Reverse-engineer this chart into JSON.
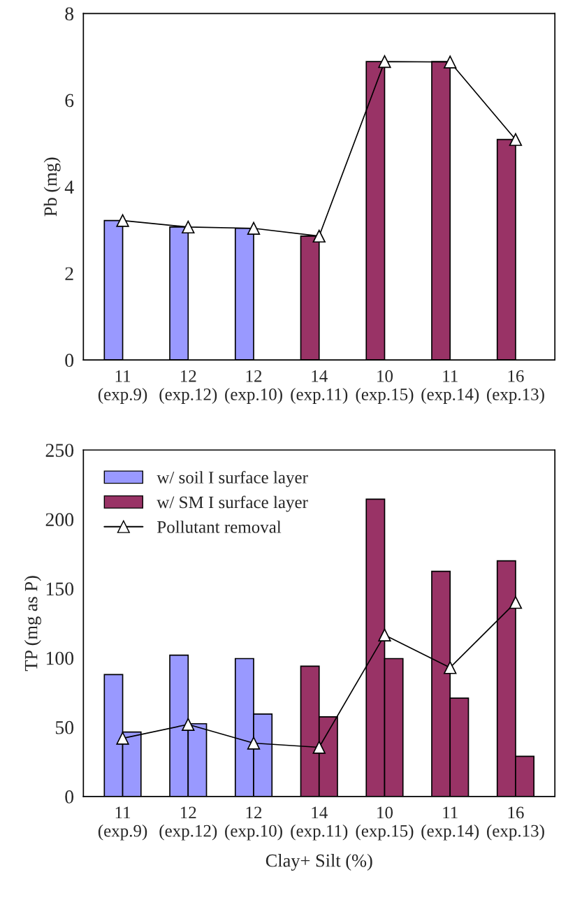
{
  "chart_data": [
    {
      "type": "bar",
      "ylabel": "Pb (mg)",
      "categories": [
        "11\n(exp.9)",
        "12\n(exp.12)",
        "12\n(exp.10)",
        "14\n(exp.11)",
        "10\n(exp.15)",
        "11\n(exp.14)",
        "16\n(exp.13)"
      ],
      "series": [
        {
          "color": "#9999ff",
          "values": [
            3.22,
            3.07,
            3.04,
            null,
            null,
            null,
            null
          ]
        },
        {
          "color": "#993366",
          "values": [
            null,
            null,
            null,
            2.86,
            6.89,
            6.89,
            5.09
          ]
        },
        {
          "type": "line",
          "color": "#000000",
          "values": [
            3.22,
            3.07,
            3.04,
            2.86,
            6.89,
            6.88,
            5.09
          ]
        }
      ],
      "ylim": [
        0,
        8
      ],
      "yticks": [
        0,
        2,
        4,
        6,
        8
      ],
      "grid": false,
      "legend": false,
      "marker": "triangle",
      "line_style": "solid"
    },
    {
      "type": "bar",
      "ylabel": "TP (mg as P)",
      "xlabel": "Clay+ Silt (%)",
      "categories": [
        "11\n(exp.9)",
        "12\n(exp.12)",
        "12\n(exp.10)",
        "14\n(exp.11)",
        "10\n(exp.15)",
        "11\n(exp.14)",
        "16\n(exp.13)"
      ],
      "series": [
        {
          "name": "w/ soil I surface layer",
          "color": "#9999ff",
          "values": [
            88,
            102,
            99.5,
            null,
            null,
            null,
            null
          ]
        },
        {
          "color": "#9999ff",
          "values": [
            46.5,
            52.5,
            59.5,
            null,
            null,
            null,
            null
          ]
        },
        {
          "name": "w/ SM I surface layer",
          "color": "#993366",
          "values": [
            null,
            null,
            null,
            94,
            214.5,
            162.5,
            170
          ]
        },
        {
          "color": "#993366",
          "values": [
            null,
            null,
            null,
            57.5,
            99.5,
            71,
            29
          ]
        },
        {
          "type": "line",
          "name": "Pollutant removal",
          "color": "#000000",
          "values": [
            42,
            52,
            38.5,
            35.5,
            116.5,
            93,
            140
          ]
        }
      ],
      "ylim": [
        0,
        250
      ],
      "yticks": [
        0,
        50,
        100,
        150,
        200,
        250
      ],
      "grid": false,
      "legend": "top left",
      "marker": "triangle",
      "line_style": "solid"
    }
  ]
}
